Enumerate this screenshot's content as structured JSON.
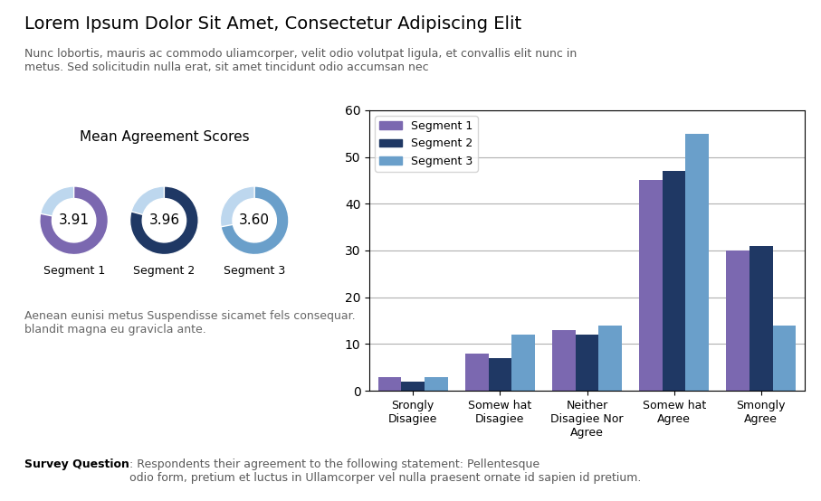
{
  "title": "Lorem Ipsum Dolor Sit Amet, Consectetur Adipiscing Elit",
  "subtitle": "Nunc lobortis, mauris ac commodo uliamcorper, velit odio volutpat ligula, et convallis elit nunc in\nmetus. Sed solicitudin nulla erat, sit amet tincidunt odio accumsan nec",
  "annotations": [
    "Survey Question",
    ": Respondents their agreement to the following statement: Pellentesque\nodio form, pretium et luctus in Ullamcorper vel nulla praesent ornate id sapien id pretium."
  ],
  "chart_data": [
    {
      "type": "bar",
      "categories": [
        "Srongly Disagiee",
        "Somew hat Disagiee",
        "Neither  Disagiee Nor Agree",
        "Somew hat Agree",
        "Smongly Agree"
      ],
      "series": [
        {
          "name": "Segment 1",
          "color": "#7B68B0",
          "values": [
            3,
            8,
            13,
            45,
            30
          ]
        },
        {
          "name": "Segment 2",
          "color": "#1F3864",
          "values": [
            2,
            7,
            12,
            47,
            31
          ]
        },
        {
          "name": "Segment 3",
          "color": "#6A9FCA",
          "values": [
            3,
            12,
            14,
            55,
            14
          ]
        }
      ],
      "ylim": [
        0,
        60
      ],
      "yticks": [
        0,
        10,
        20,
        30,
        40,
        50,
        60
      ],
      "grid": true,
      "legend": "upper left"
    },
    {
      "type": "donut",
      "title": "Mean Agreement Scores",
      "annotations": [
        "Aenean eunisi metus Suspendisse sicamet fels consequar.\nblandit magna eu gravicla ante."
      ],
      "max": 5.0,
      "series": [
        {
          "name": "Segment 1",
          "values": [
            3.91
          ],
          "value_labels": [
            "3.91"
          ],
          "colors": [
            "#7B68B0",
            "#BDD7EE"
          ]
        },
        {
          "name": "Segment 2",
          "values": [
            3.96
          ],
          "value_labels": [
            "3.96"
          ],
          "colors": [
            "#1F3864",
            "#BDD7EE"
          ]
        },
        {
          "name": "Segment 3",
          "values": [
            3.6
          ],
          "value_labels": [
            "3.60"
          ],
          "colors": [
            "#6A9FCA",
            "#BDD7EE"
          ]
        }
      ]
    }
  ]
}
